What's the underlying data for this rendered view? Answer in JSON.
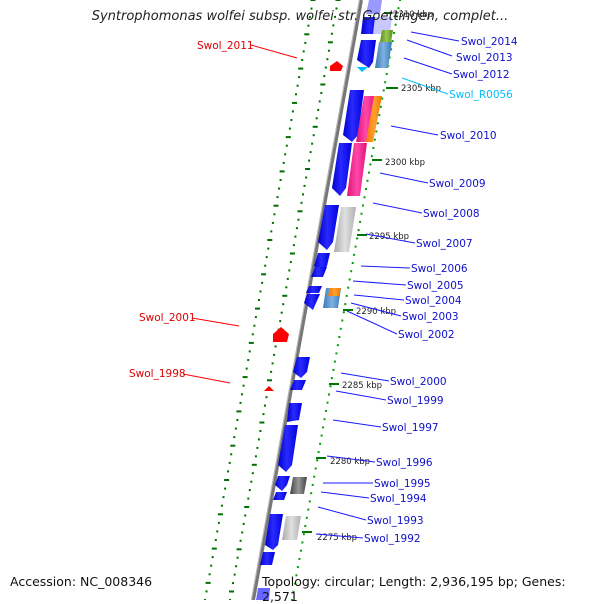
{
  "title": "Syntrophomonas wolfei subsp. wolfei str. Goettingen, complet...",
  "accession": "Accession: NC_008346",
  "topology": "Topology: circular; Length: 2,936,195 bp; Genes: 2,571",
  "colors": {
    "forward_strand": "#1a1aff",
    "reverse_strand": "#ff0000",
    "rna": "#00bfff",
    "tick": "#007700",
    "backbone": "#777777"
  },
  "kbp_markers": [
    {
      "label": "2310 kbp"
    },
    {
      "label": "2305 kbp"
    },
    {
      "label": "2300 kbp"
    },
    {
      "label": "2295 kbp"
    },
    {
      "label": "2290 kbp"
    },
    {
      "label": "2285 kbp"
    },
    {
      "label": "2280 kbp"
    },
    {
      "label": "2275 kbp"
    }
  ],
  "gene_labels": [
    {
      "label": "Swol_2011"
    },
    {
      "label": "Swol_2014"
    },
    {
      "label": "Swol_2013"
    },
    {
      "label": "Swol_2012"
    },
    {
      "label": "Swol_R0056"
    },
    {
      "label": "Swol_2010"
    },
    {
      "label": "Swol_2009"
    },
    {
      "label": "Swol_2008"
    },
    {
      "label": "Swol_2007"
    },
    {
      "label": "Swol_2006"
    },
    {
      "label": "Swol_2005"
    },
    {
      "label": "Swol_2004"
    },
    {
      "label": "Swol_2003"
    },
    {
      "label": "Swol_2002"
    },
    {
      "label": "Swol_2001"
    },
    {
      "label": "Swol_1998"
    },
    {
      "label": "Swol_2000"
    },
    {
      "label": "Swol_1999"
    },
    {
      "label": "Swol_1997"
    },
    {
      "label": "Swol_1996"
    },
    {
      "label": "Swol_1995"
    },
    {
      "label": "Swol_1994"
    },
    {
      "label": "Swol_1993"
    },
    {
      "label": "Swol_1992"
    }
  ]
}
